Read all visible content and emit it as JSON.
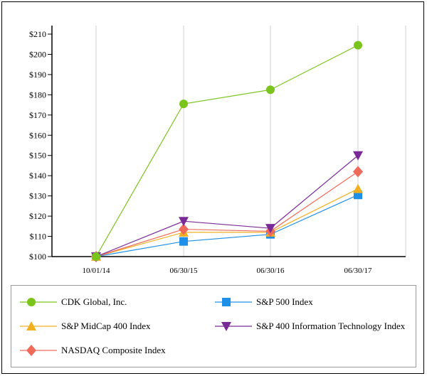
{
  "chart_data": {
    "type": "line",
    "title": "",
    "xlabel": "",
    "ylabel": "",
    "categories": [
      "10/01/14",
      "06/30/15",
      "06/30/16",
      "06/30/17"
    ],
    "ylim": [
      100,
      210
    ],
    "yticks": [
      100,
      110,
      120,
      130,
      140,
      150,
      160,
      170,
      180,
      190,
      200,
      210
    ],
    "ytick_labels": [
      "$100",
      "$110",
      "$120",
      "$130",
      "$140",
      "$150",
      "$160",
      "$170",
      "$180",
      "$190",
      "$200",
      "$210"
    ],
    "grid": "vertical",
    "legend_position": "bottom",
    "series": [
      {
        "name": "S&P 500 Index",
        "color": "#1e90e8",
        "marker": "square",
        "values": [
          100,
          107.5,
          111,
          130.5
        ]
      },
      {
        "name": "S&P MidCap 400 Index",
        "color": "#f0b020",
        "marker": "triangle-up",
        "values": [
          100,
          112,
          112,
          133.5
        ]
      },
      {
        "name": "NASDAQ Composite Index",
        "color": "#f06a5a",
        "marker": "diamond",
        "values": [
          100,
          113.5,
          112.5,
          142
        ]
      },
      {
        "name": "S&P 400 Information Technology Index",
        "color": "#7a2a96",
        "marker": "triangle-down",
        "values": [
          100,
          117.5,
          114,
          150
        ]
      },
      {
        "name": "CDK Global, Inc.",
        "color": "#7ac41c",
        "marker": "circle",
        "values": [
          100,
          175.5,
          182.5,
          204.5
        ]
      }
    ],
    "legend_order": [
      "CDK Global, Inc.",
      "S&P 500 Index",
      "S&P MidCap 400 Index",
      "S&P 400 Information Technology Index",
      "NASDAQ Composite Index"
    ]
  }
}
